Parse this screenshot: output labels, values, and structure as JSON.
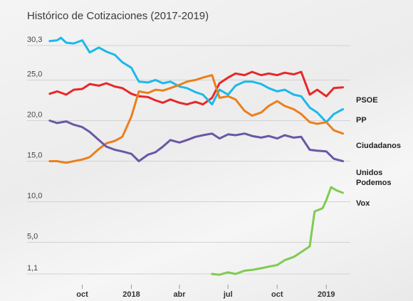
{
  "title": "Histórico de Cotizaciones (2017-2019)",
  "chart_data": {
    "type": "line",
    "title": "Histórico de Cotizaciones (2017-2019)",
    "xlabel": "",
    "ylabel": "",
    "x_range": [
      "2017-07-27",
      "2019-02-15"
    ],
    "ylim": [
      1.1,
      30.3
    ],
    "y_ticks": [
      {
        "value": 30.3,
        "label": "30,3"
      },
      {
        "value": 25.0,
        "label": "25,0"
      },
      {
        "value": 20.0,
        "label": "20,0"
      },
      {
        "value": 15.0,
        "label": "15,0"
      },
      {
        "value": 10.0,
        "label": "10,0"
      },
      {
        "value": 5.0,
        "label": "5,0"
      },
      {
        "value": 1.1,
        "label": "1,1"
      }
    ],
    "x_ticks": [
      {
        "date": "2017-10-01",
        "label": "oct"
      },
      {
        "date": "2018-01-01",
        "label": "2018"
      },
      {
        "date": "2018-04-01",
        "label": "abr"
      },
      {
        "date": "2018-07-01",
        "label": "jul"
      },
      {
        "date": "2018-10-01",
        "label": "oct"
      },
      {
        "date": "2019-01-01",
        "label": "2019"
      }
    ],
    "grid": true,
    "series": [
      {
        "name": "PSOE",
        "label": "PSOE",
        "color": "#e8272a",
        "points": [
          [
            "2017-08-01",
            23.3
          ],
          [
            "2017-08-15",
            23.6
          ],
          [
            "2017-09-01",
            23.2
          ],
          [
            "2017-09-15",
            23.8
          ],
          [
            "2017-10-01",
            23.9
          ],
          [
            "2017-10-15",
            24.5
          ],
          [
            "2017-11-01",
            24.3
          ],
          [
            "2017-11-15",
            24.6
          ],
          [
            "2017-12-01",
            24.2
          ],
          [
            "2017-12-15",
            24.0
          ],
          [
            "2018-01-01",
            23.3
          ],
          [
            "2018-01-15",
            23.0
          ],
          [
            "2018-02-01",
            22.9
          ],
          [
            "2018-02-15",
            22.5
          ],
          [
            "2018-03-01",
            22.2
          ],
          [
            "2018-03-15",
            22.6
          ],
          [
            "2018-04-01",
            22.2
          ],
          [
            "2018-04-15",
            22.0
          ],
          [
            "2018-05-01",
            22.3
          ],
          [
            "2018-05-15",
            22.0
          ],
          [
            "2018-06-01",
            22.8
          ],
          [
            "2018-06-15",
            24.6
          ],
          [
            "2018-07-01",
            25.3
          ],
          [
            "2018-07-15",
            25.8
          ],
          [
            "2018-08-01",
            25.6
          ],
          [
            "2018-08-15",
            26.0
          ],
          [
            "2018-09-01",
            25.6
          ],
          [
            "2018-09-15",
            25.8
          ],
          [
            "2018-10-01",
            25.6
          ],
          [
            "2018-10-15",
            25.9
          ],
          [
            "2018-11-01",
            25.7
          ],
          [
            "2018-11-15",
            26.0
          ],
          [
            "2018-12-01",
            23.2
          ],
          [
            "2018-12-15",
            23.8
          ],
          [
            "2019-01-01",
            23.0
          ],
          [
            "2019-01-15",
            24.0
          ],
          [
            "2019-02-01",
            24.1
          ]
        ]
      },
      {
        "name": "PP",
        "label": "PP",
        "color": "#1ab9ec",
        "points": [
          [
            "2017-08-01",
            29.8
          ],
          [
            "2017-08-15",
            29.9
          ],
          [
            "2017-08-22",
            30.2
          ],
          [
            "2017-09-01",
            29.6
          ],
          [
            "2017-09-15",
            29.5
          ],
          [
            "2017-10-01",
            29.9
          ],
          [
            "2017-10-15",
            28.4
          ],
          [
            "2017-11-01",
            29.0
          ],
          [
            "2017-11-15",
            28.5
          ],
          [
            "2017-12-01",
            28.1
          ],
          [
            "2017-12-15",
            27.2
          ],
          [
            "2018-01-01",
            26.5
          ],
          [
            "2018-01-15",
            24.8
          ],
          [
            "2018-02-01",
            24.7
          ],
          [
            "2018-02-15",
            25.0
          ],
          [
            "2018-03-01",
            24.6
          ],
          [
            "2018-03-15",
            24.8
          ],
          [
            "2018-04-01",
            24.2
          ],
          [
            "2018-04-15",
            24.0
          ],
          [
            "2018-05-01",
            23.5
          ],
          [
            "2018-05-15",
            23.2
          ],
          [
            "2018-06-01",
            22.0
          ],
          [
            "2018-06-15",
            23.8
          ],
          [
            "2018-07-01",
            23.2
          ],
          [
            "2018-07-15",
            24.3
          ],
          [
            "2018-08-01",
            24.8
          ],
          [
            "2018-08-15",
            24.8
          ],
          [
            "2018-09-01",
            24.5
          ],
          [
            "2018-09-15",
            24.0
          ],
          [
            "2018-10-01",
            23.6
          ],
          [
            "2018-10-15",
            23.8
          ],
          [
            "2018-11-01",
            23.2
          ],
          [
            "2018-11-15",
            23.0
          ],
          [
            "2018-12-01",
            21.6
          ],
          [
            "2018-12-15",
            21.0
          ],
          [
            "2019-01-01",
            19.8
          ],
          [
            "2019-01-15",
            20.8
          ],
          [
            "2019-02-01",
            21.4
          ]
        ]
      },
      {
        "name": "Ciudadanos",
        "label": "Ciudadanos",
        "color": "#eb7f1c",
        "points": [
          [
            "2017-08-01",
            15.0
          ],
          [
            "2017-08-15",
            15.0
          ],
          [
            "2017-09-01",
            14.8
          ],
          [
            "2017-09-15",
            15.0
          ],
          [
            "2017-10-01",
            15.2
          ],
          [
            "2017-10-15",
            15.5
          ],
          [
            "2017-11-01",
            16.5
          ],
          [
            "2017-11-15",
            17.2
          ],
          [
            "2017-12-01",
            17.5
          ],
          [
            "2017-12-15",
            18.0
          ],
          [
            "2018-01-01",
            20.5
          ],
          [
            "2018-01-15",
            23.6
          ],
          [
            "2018-02-01",
            23.4
          ],
          [
            "2018-02-15",
            23.8
          ],
          [
            "2018-03-01",
            23.7
          ],
          [
            "2018-03-15",
            24.0
          ],
          [
            "2018-04-01",
            24.4
          ],
          [
            "2018-04-15",
            24.8
          ],
          [
            "2018-05-01",
            25.0
          ],
          [
            "2018-05-15",
            25.3
          ],
          [
            "2018-06-01",
            25.6
          ],
          [
            "2018-06-15",
            22.8
          ],
          [
            "2018-07-01",
            23.0
          ],
          [
            "2018-07-15",
            22.6
          ],
          [
            "2018-08-01",
            21.2
          ],
          [
            "2018-08-15",
            20.6
          ],
          [
            "2018-09-01",
            21.0
          ],
          [
            "2018-09-15",
            21.8
          ],
          [
            "2018-10-01",
            22.4
          ],
          [
            "2018-10-15",
            21.8
          ],
          [
            "2018-11-01",
            21.4
          ],
          [
            "2018-11-15",
            20.8
          ],
          [
            "2018-12-01",
            19.8
          ],
          [
            "2018-12-15",
            19.6
          ],
          [
            "2019-01-01",
            19.8
          ],
          [
            "2019-01-15",
            18.8
          ],
          [
            "2019-02-01",
            18.4
          ]
        ]
      },
      {
        "name": "Unidos Podemos",
        "label": "Unidos\nPodemos",
        "color": "#6a57a4",
        "points": [
          [
            "2017-08-01",
            20.0
          ],
          [
            "2017-08-15",
            19.7
          ],
          [
            "2017-09-01",
            19.9
          ],
          [
            "2017-09-15",
            19.5
          ],
          [
            "2017-10-01",
            19.2
          ],
          [
            "2017-10-15",
            18.6
          ],
          [
            "2017-11-01",
            17.6
          ],
          [
            "2017-11-15",
            16.8
          ],
          [
            "2017-12-01",
            16.4
          ],
          [
            "2017-12-15",
            16.2
          ],
          [
            "2018-01-01",
            15.9
          ],
          [
            "2018-01-15",
            15.0
          ],
          [
            "2018-02-01",
            15.8
          ],
          [
            "2018-02-15",
            16.1
          ],
          [
            "2018-03-01",
            16.8
          ],
          [
            "2018-03-15",
            17.6
          ],
          [
            "2018-04-01",
            17.3
          ],
          [
            "2018-04-15",
            17.6
          ],
          [
            "2018-05-01",
            18.0
          ],
          [
            "2018-05-15",
            18.2
          ],
          [
            "2018-06-01",
            18.4
          ],
          [
            "2018-06-15",
            17.8
          ],
          [
            "2018-07-01",
            18.3
          ],
          [
            "2018-07-15",
            18.2
          ],
          [
            "2018-08-01",
            18.4
          ],
          [
            "2018-08-15",
            18.1
          ],
          [
            "2018-09-01",
            17.9
          ],
          [
            "2018-09-15",
            18.1
          ],
          [
            "2018-10-01",
            17.8
          ],
          [
            "2018-10-15",
            18.2
          ],
          [
            "2018-11-01",
            17.9
          ],
          [
            "2018-11-15",
            18.0
          ],
          [
            "2018-12-01",
            16.4
          ],
          [
            "2018-12-15",
            16.3
          ],
          [
            "2019-01-01",
            16.2
          ],
          [
            "2019-01-15",
            15.3
          ],
          [
            "2019-02-01",
            15.0
          ]
        ]
      },
      {
        "name": "Vox",
        "label": "Vox",
        "color": "#7fcb52",
        "points": [
          [
            "2018-06-01",
            1.1
          ],
          [
            "2018-06-15",
            1.0
          ],
          [
            "2018-07-01",
            1.3
          ],
          [
            "2018-07-15",
            1.1
          ],
          [
            "2018-08-01",
            1.5
          ],
          [
            "2018-08-15",
            1.6
          ],
          [
            "2018-09-01",
            1.8
          ],
          [
            "2018-09-15",
            2.0
          ],
          [
            "2018-10-01",
            2.2
          ],
          [
            "2018-10-15",
            2.8
          ],
          [
            "2018-11-01",
            3.2
          ],
          [
            "2018-11-15",
            3.8
          ],
          [
            "2018-12-01",
            4.5
          ],
          [
            "2018-12-10",
            8.8
          ],
          [
            "2018-12-25",
            9.2
          ],
          [
            "2019-01-01",
            10.2
          ],
          [
            "2019-01-10",
            11.8
          ],
          [
            "2019-01-20",
            11.4
          ],
          [
            "2019-02-01",
            11.1
          ]
        ]
      }
    ]
  }
}
